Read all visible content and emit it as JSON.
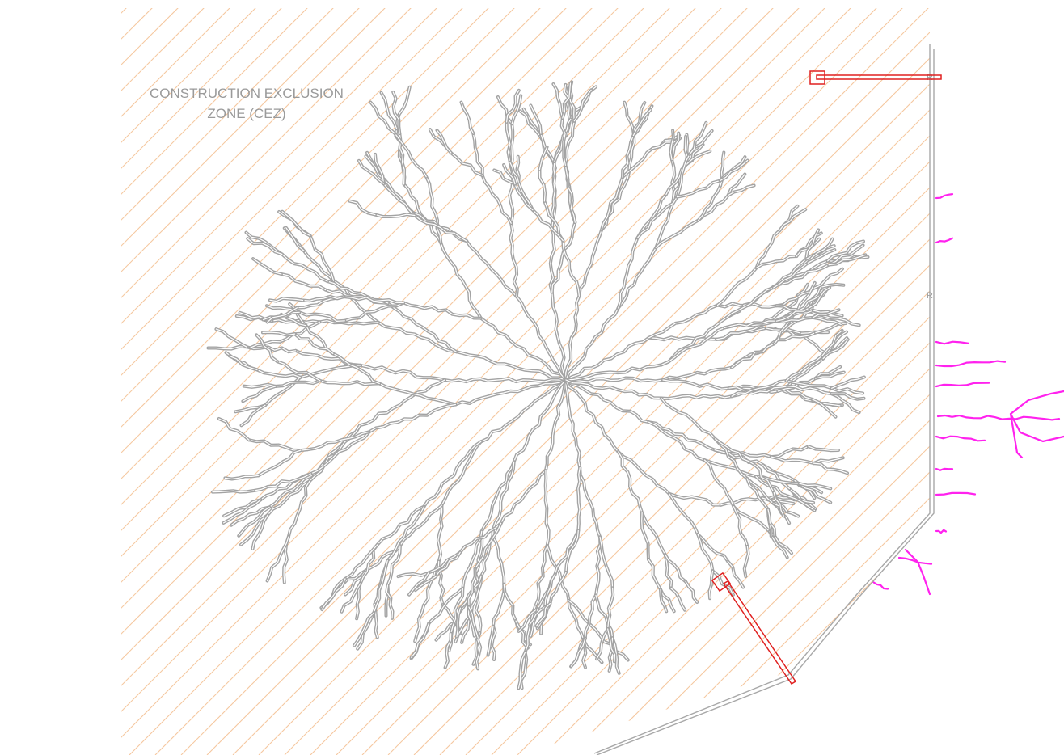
{
  "zone_label": {
    "line1": "CONSTRUCTION EXCLUSION",
    "line2": "ZONE (CEZ)"
  },
  "colors": {
    "background": "#ffffff",
    "hatch": "#f5c8a0",
    "roots": "#a3a3a3",
    "boundary": "#a8a8a8",
    "marker": "#e02020",
    "cut_roots": "#ff22ee",
    "label": "#9a9a9a"
  },
  "marker_glyph": "R"
}
